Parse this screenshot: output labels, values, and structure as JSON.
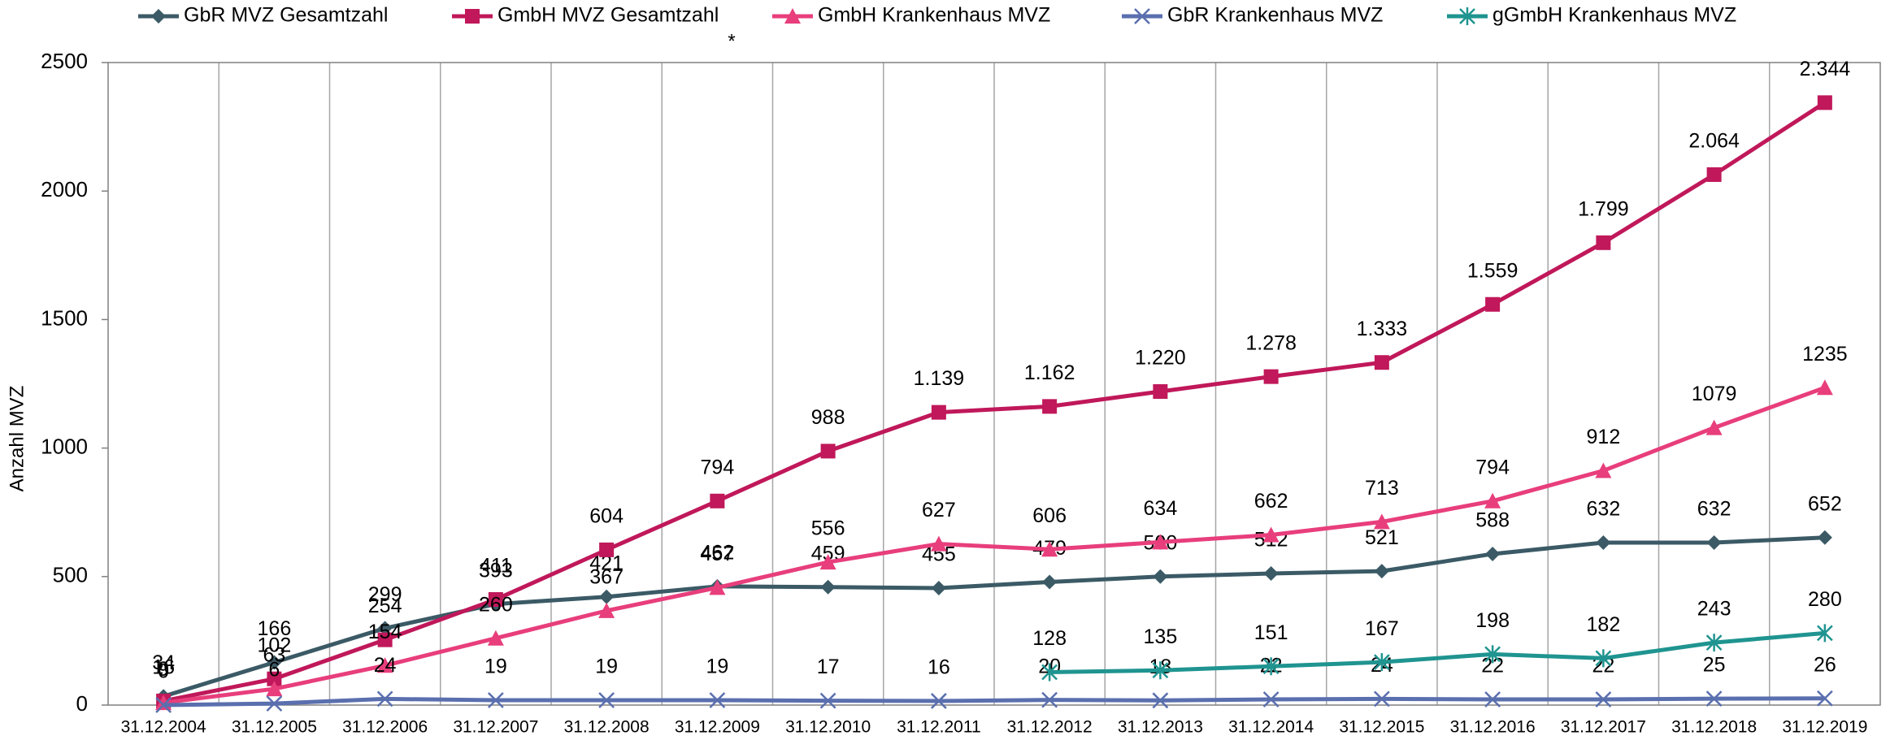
{
  "chart_data": {
    "type": "line",
    "y_label": "Anzahl MVZ",
    "annotation": "*",
    "categories": [
      "31.12.2004",
      "31.12.2005",
      "31.12.2006",
      "31.12.2007",
      "31.12.2008",
      "31.12.2009",
      "31.12.2010",
      "31.12.2011",
      "31.12.2012",
      "31.12.2013",
      "31.12.2014",
      "31.12.2015",
      "31.12.2016",
      "31.12.2017",
      "31.12.2018",
      "31.12.2019"
    ],
    "series": [
      {
        "name": "GbR MVZ Gesamtzahl",
        "color": "#3b5a66",
        "marker": "diamond",
        "values": [
          34,
          166,
          299,
          393,
          421,
          462,
          459,
          455,
          479,
          500,
          512,
          521,
          588,
          632,
          632,
          652
        ]
      },
      {
        "name": "GmbH MVZ Gesamtzahl",
        "color": "#c0185a",
        "marker": "square",
        "values": [
          16,
          102,
          254,
          411,
          604,
          794,
          988,
          1139,
          1162,
          1220,
          1278,
          1333,
          1559,
          1799,
          2064,
          2344
        ],
        "value_labels": [
          "16",
          "102",
          "254",
          "411",
          "604",
          "794",
          "988",
          "1.139",
          "1.162",
          "1.220",
          "1.278",
          "1.333",
          "1.559",
          "1.799",
          "2.064",
          "2.344"
        ]
      },
      {
        "name": "GmbH Krankenhaus MVZ",
        "color": "#e83e7c",
        "marker": "triangle",
        "values": [
          9,
          63,
          154,
          260,
          367,
          457,
          556,
          627,
          606,
          634,
          662,
          713,
          794,
          912,
          1079,
          1235
        ]
      },
      {
        "name": "GbR Krankenhaus MVZ",
        "color": "#5a6fae",
        "marker": "x",
        "values": [
          0,
          6,
          24,
          19,
          19,
          19,
          17,
          16,
          20,
          18,
          22,
          24,
          22,
          22,
          25,
          26
        ]
      },
      {
        "name": "gGmbH Krankenhaus MVZ",
        "color": "#1f9490",
        "marker": "asterisk",
        "values": [
          null,
          null,
          null,
          null,
          null,
          null,
          null,
          null,
          128,
          135,
          151,
          167,
          198,
          182,
          243,
          280
        ]
      }
    ],
    "ylim": [
      0,
      2500
    ],
    "yticks": [
      0,
      500,
      1000,
      1500,
      2000,
      2500
    ]
  }
}
